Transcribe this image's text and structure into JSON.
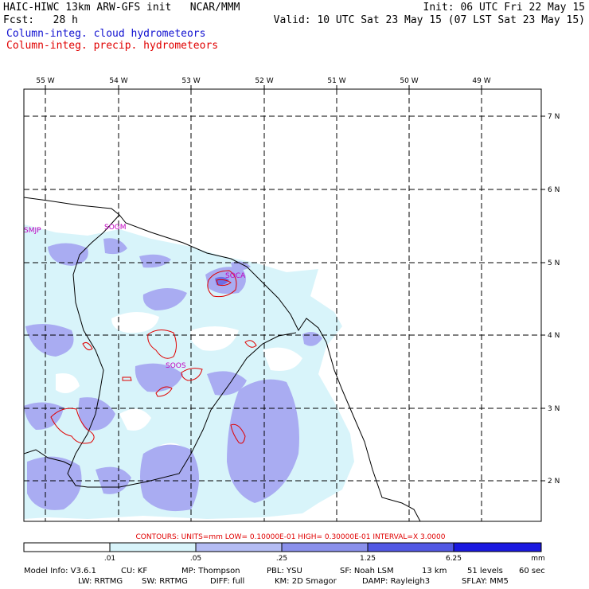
{
  "header": {
    "line1_left": "HAIC-HIWC 13km ARW-GFS init   NCAR/MMM",
    "line1_right": "Init: 06 UTC Fri 22 May 15",
    "line2_left": "Fcst:   28 h",
    "line2_right": "Valid: 10 UTC Sat 23 May 15 (07 LST Sat 23 May 15)",
    "field1": "Column-integ. cloud hydrometeors",
    "field2": "Column-integ. precip. hydrometeors"
  },
  "axes": {
    "longitudes": [
      "55 W",
      "54 W",
      "53 W",
      "52 W",
      "51 W",
      "50 W",
      "49 W"
    ],
    "latitudes": [
      "7 N",
      "6 N",
      "5 N",
      "4 N",
      "3 N",
      "2 N"
    ]
  },
  "stations": [
    "SMJP",
    "SOGM",
    "SOCA",
    "SOOS"
  ],
  "contour_info": "CONTOURS:  UNITS=mm  LOW= 0.10000E-01  HIGH= 0.30000E-01  INTERVAL=X  3.0000",
  "colorbar": {
    "ticks": [
      ".01",
      ".05",
      ".25",
      "1.25",
      "6.25"
    ],
    "unit": "mm",
    "colors": [
      "#ffffff",
      "#d8f4fa",
      "#b4bcf4",
      "#8a90ec",
      "#5258e4",
      "#1a18e0"
    ]
  },
  "footer": {
    "line1": [
      "Model Info: V3.6.1",
      "CU: KF",
      "MP: Thompson",
      "PBL: YSU",
      "SF: Noah LSM",
      "13 km",
      "51 levels",
      "60 sec"
    ],
    "line2": [
      "LW: RRTMG",
      "SW: RRTMG",
      "DIFF: full",
      "KM: 2D Smagor",
      "DAMP: Rayleigh3",
      "SFLAY: MM5"
    ]
  },
  "colors": {
    "cloud_light": "#d8f4fa",
    "cloud_medium": "#a9acf2",
    "cloud_dark": "#6e6ee6",
    "precip_contour": "#e00000",
    "station_label": "#c000c0"
  }
}
